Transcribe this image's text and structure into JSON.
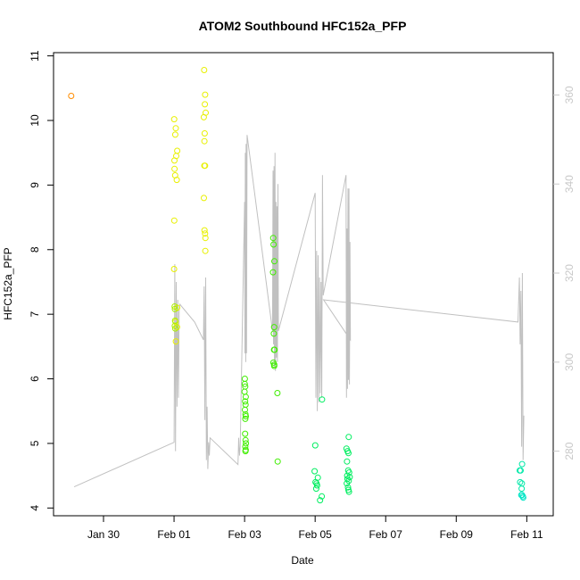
{
  "chart_data": {
    "type": "scatter",
    "title": "ATOM2 Southbound HFC152a_PFP",
    "xlabel": "Date",
    "ylabel": "HFC152a_PFP",
    "xlim": [
      "2017-01-28 14:00",
      "2017-02-11 18:00"
    ],
    "ylim": [
      3.88,
      11.05
    ],
    "y2lim": [
      265.5,
      369.5
    ],
    "x_ticks": [
      {
        "date": "2017-01-30",
        "label": "Jan 30"
      },
      {
        "date": "2017-02-01",
        "label": "Feb 01"
      },
      {
        "date": "2017-02-03",
        "label": "Feb 03"
      },
      {
        "date": "2017-02-05",
        "label": "Feb 05"
      },
      {
        "date": "2017-02-07",
        "label": "Feb 07"
      },
      {
        "date": "2017-02-09",
        "label": "Feb 09"
      },
      {
        "date": "2017-02-11",
        "label": "Feb 11"
      }
    ],
    "y_ticks": [
      {
        "value": 4,
        "label": "4"
      },
      {
        "value": 5,
        "label": "5"
      },
      {
        "value": 6,
        "label": "6"
      },
      {
        "value": 7,
        "label": "7"
      },
      {
        "value": 8,
        "label": "8"
      },
      {
        "value": 9,
        "label": "9"
      },
      {
        "value": 10,
        "label": "10"
      },
      {
        "value": 11,
        "label": "11"
      }
    ],
    "y2_ticks": [
      {
        "value": 280,
        "label": "280"
      },
      {
        "value": 300,
        "label": "300"
      },
      {
        "value": 320,
        "label": "320"
      },
      {
        "value": 340,
        "label": "340"
      },
      {
        "value": 360,
        "label": "360"
      }
    ],
    "grid": false,
    "colors": {
      "orange": "#ff8c00",
      "yellow": "#e8f000",
      "lime": "#aaee00",
      "green": "#40ee00",
      "spring": "#00ee60",
      "teal": "#00e8a8",
      "cyan": "#00e6c6",
      "line": "#c0c0c0",
      "right_axis": "#c8c8c8"
    },
    "series": [
      {
        "color_key": "orange",
        "points": [
          [
            "2017-01-29 02:00",
            10.38
          ]
        ]
      },
      {
        "color_key": "yellow",
        "points": [
          [
            "2017-02-01 00:05",
            10.02
          ],
          [
            "2017-02-01 01:10",
            9.88
          ],
          [
            "2017-02-01 00:50",
            9.78
          ],
          [
            "2017-02-01 02:10",
            9.53
          ],
          [
            "2017-02-01 01:30",
            9.45
          ],
          [
            "2017-02-01 00:15",
            9.38
          ],
          [
            "2017-02-01 00:20",
            9.25
          ],
          [
            "2017-02-01 00:45",
            9.15
          ],
          [
            "2017-02-01 01:50",
            9.08
          ],
          [
            "2017-02-01 00:10",
            8.45
          ],
          [
            "2017-02-01 00:00",
            7.7
          ],
          [
            "2017-02-01 02:10",
            7.1
          ],
          [
            "2017-02-01 01:00",
            6.88
          ],
          [
            "2017-02-01 02:00",
            6.8
          ],
          [
            "2017-02-01 01:15",
            6.58
          ],
          [
            "2017-02-01 20:30",
            10.78
          ],
          [
            "2017-02-01 21:10",
            10.4
          ],
          [
            "2017-02-01 21:00",
            10.25
          ],
          [
            "2017-02-01 21:30",
            10.12
          ],
          [
            "2017-02-01 20:15",
            10.05
          ],
          [
            "2017-02-01 20:50",
            9.8
          ],
          [
            "2017-02-01 20:40",
            9.68
          ],
          [
            "2017-02-01 20:35",
            9.3
          ],
          [
            "2017-02-01 21:05",
            9.3
          ],
          [
            "2017-02-01 20:20",
            8.8
          ],
          [
            "2017-02-01 20:45",
            8.3
          ],
          [
            "2017-02-01 21:05",
            8.25
          ],
          [
            "2017-02-01 21:20",
            8.18
          ],
          [
            "2017-02-01 21:15",
            7.98
          ]
        ]
      },
      {
        "color_key": "lime",
        "points": [
          [
            "2017-02-01 00:25",
            7.12
          ],
          [
            "2017-02-01 00:35",
            7.08
          ],
          [
            "2017-02-01 00:40",
            6.9
          ],
          [
            "2017-02-01 00:30",
            6.82
          ],
          [
            "2017-02-01 00:50",
            6.78
          ]
        ]
      },
      {
        "color_key": "green",
        "points": [
          [
            "2017-02-03 00:10",
            6.0
          ],
          [
            "2017-02-03 00:05",
            5.92
          ],
          [
            "2017-02-03 00:25",
            5.88
          ],
          [
            "2017-02-03 00:00",
            5.8
          ],
          [
            "2017-02-03 00:45",
            5.72
          ],
          [
            "2017-02-03 00:20",
            5.65
          ],
          [
            "2017-02-03 00:40",
            5.6
          ],
          [
            "2017-02-03 00:15",
            5.52
          ],
          [
            "2017-02-03 00:35",
            5.45
          ],
          [
            "2017-02-03 00:50",
            5.42
          ],
          [
            "2017-02-03 00:30",
            5.38
          ],
          [
            "2017-02-03 00:20",
            5.15
          ],
          [
            "2017-02-03 00:40",
            5.05
          ],
          [
            "2017-02-03 00:55",
            5.0
          ],
          [
            "2017-02-03 00:30",
            4.95
          ],
          [
            "2017-02-03 00:45",
            4.9
          ],
          [
            "2017-02-03 00:35",
            4.88
          ],
          [
            "2017-02-03 19:30",
            8.18
          ],
          [
            "2017-02-03 19:45",
            8.08
          ],
          [
            "2017-02-03 20:15",
            7.82
          ],
          [
            "2017-02-03 19:20",
            7.65
          ],
          [
            "2017-02-03 20:05",
            6.8
          ],
          [
            "2017-02-03 19:55",
            6.7
          ],
          [
            "2017-02-03 20:00",
            6.45
          ],
          [
            "2017-02-03 20:25",
            6.45
          ],
          [
            "2017-02-03 19:35",
            6.25
          ],
          [
            "2017-02-03 20:10",
            6.22
          ],
          [
            "2017-02-03 20:10",
            6.2
          ],
          [
            "2017-02-03 22:20",
            5.78
          ],
          [
            "2017-02-03 22:30",
            4.72
          ]
        ]
      },
      {
        "color_key": "spring",
        "points": [
          [
            "2017-02-05 00:05",
            4.97
          ],
          [
            "2017-02-05 04:40",
            5.68
          ],
          [
            "2017-02-04 23:40",
            4.57
          ],
          [
            "2017-02-05 01:50",
            4.47
          ],
          [
            "2017-02-05 00:15",
            4.4
          ],
          [
            "2017-02-05 01:00",
            4.38
          ],
          [
            "2017-02-05 01:20",
            4.35
          ],
          [
            "2017-02-05 00:45",
            4.3
          ],
          [
            "2017-02-05 04:30",
            4.18
          ],
          [
            "2017-02-05 03:20",
            4.12
          ],
          [
            "2017-02-05 22:50",
            5.1
          ],
          [
            "2017-02-05 21:20",
            4.92
          ],
          [
            "2017-02-05 22:05",
            4.88
          ],
          [
            "2017-02-05 22:40",
            4.85
          ],
          [
            "2017-02-05 21:40",
            4.72
          ],
          [
            "2017-02-05 22:30",
            4.58
          ],
          [
            "2017-02-05 23:10",
            4.55
          ],
          [
            "2017-02-05 21:50",
            4.5
          ],
          [
            "2017-02-05 23:30",
            4.48
          ],
          [
            "2017-02-05 22:00",
            4.45
          ],
          [
            "2017-02-05 22:50",
            4.42
          ],
          [
            "2017-02-05 21:30",
            4.38
          ],
          [
            "2017-02-05 22:20",
            4.32
          ],
          [
            "2017-02-05 22:40",
            4.28
          ],
          [
            "2017-02-05 23:00",
            4.25
          ]
        ]
      },
      {
        "color_key": "teal",
        "points": [
          [
            "2017-02-10 19:10",
            4.58
          ],
          [
            "2017-02-10 19:50",
            4.58
          ],
          [
            "2017-02-10 20:50",
            4.68
          ],
          [
            "2017-02-10 19:30",
            4.4
          ],
          [
            "2017-02-10 20:40",
            4.38
          ],
          [
            "2017-02-10 20:30",
            4.3
          ]
        ]
      },
      {
        "color_key": "cyan",
        "points": [
          [
            "2017-02-10 20:15",
            4.2
          ],
          [
            "2017-02-10 20:50",
            4.2
          ],
          [
            "2017-02-10 21:20",
            4.18
          ],
          [
            "2017-02-10 21:35",
            4.16
          ]
        ]
      }
    ],
    "line_series": {
      "color_key": "line",
      "axis": "right",
      "points": [
        [
          "2017-01-29 04:00",
          272
        ],
        [
          "2017-02-01 00:00",
          282
        ],
        [
          "2017-02-01 00:30",
          322
        ],
        [
          "2017-02-01 01:00",
          280
        ],
        [
          "2017-02-01 01:30",
          318
        ],
        [
          "2017-02-01 02:00",
          290
        ],
        [
          "2017-02-01 02:30",
          314
        ],
        [
          "2017-02-01 03:00",
          292
        ],
        [
          "2017-02-01 03:30",
          312
        ],
        [
          "2017-02-01 04:00",
          313
        ],
        [
          "2017-02-01 14:00",
          309
        ],
        [
          "2017-02-01 20:00",
          305
        ],
        [
          "2017-02-01 20:30",
          317
        ],
        [
          "2017-02-01 21:00",
          287
        ],
        [
          "2017-02-01 21:30",
          319
        ],
        [
          "2017-02-01 22:00",
          278
        ],
        [
          "2017-02-01 22:30",
          290
        ],
        [
          "2017-02-01 23:00",
          276
        ],
        [
          "2017-02-01 23:30",
          282
        ],
        [
          "2017-02-02 00:00",
          279
        ],
        [
          "2017-02-02 00:30",
          283
        ],
        [
          "2017-02-02 19:30",
          277
        ],
        [
          "2017-02-02 20:00",
          283
        ],
        [
          "2017-02-02 20:30",
          279
        ],
        [
          "2017-02-02 21:00",
          281
        ],
        [
          "2017-02-03 00:00",
          336
        ],
        [
          "2017-02-03 00:15",
          302
        ],
        [
          "2017-02-03 00:30",
          347
        ],
        [
          "2017-02-03 00:45",
          300
        ],
        [
          "2017-02-03 01:00",
          349
        ],
        [
          "2017-02-03 01:20",
          302
        ],
        [
          "2017-02-03 01:40",
          351
        ],
        [
          "2017-02-03 19:00",
          307
        ],
        [
          "2017-02-03 19:20",
          343
        ],
        [
          "2017-02-03 19:40",
          304
        ],
        [
          "2017-02-03 20:00",
          344
        ],
        [
          "2017-02-03 20:20",
          299
        ],
        [
          "2017-02-03 20:40",
          347
        ],
        [
          "2017-02-03 21:00",
          298
        ],
        [
          "2017-02-03 21:20",
          336
        ],
        [
          "2017-02-03 21:40",
          301
        ],
        [
          "2017-02-03 22:00",
          335
        ],
        [
          "2017-02-03 22:20",
          300
        ],
        [
          "2017-02-03 22:40",
          340
        ],
        [
          "2017-02-03 23:00",
          307
        ],
        [
          "2017-02-05 00:00",
          338
        ],
        [
          "2017-02-05 00:30",
          292
        ],
        [
          "2017-02-05 01:00",
          325
        ],
        [
          "2017-02-05 01:30",
          289
        ],
        [
          "2017-02-05 02:00",
          324
        ],
        [
          "2017-02-05 02:30",
          291
        ],
        [
          "2017-02-05 03:00",
          319
        ],
        [
          "2017-02-05 03:30",
          293
        ],
        [
          "2017-02-05 04:00",
          318
        ],
        [
          "2017-02-05 04:30",
          292
        ],
        [
          "2017-02-05 05:00",
          342
        ],
        [
          "2017-02-05 05:30",
          315
        ],
        [
          "2017-02-05 21:00",
          342
        ],
        [
          "2017-02-05 21:20",
          292
        ],
        [
          "2017-02-05 21:40",
          330
        ],
        [
          "2017-02-05 22:00",
          294
        ],
        [
          "2017-02-05 22:20",
          339
        ],
        [
          "2017-02-05 22:40",
          296
        ],
        [
          "2017-02-05 23:00",
          339
        ],
        [
          "2017-02-05 23:20",
          295
        ],
        [
          "2017-02-05 23:40",
          327
        ],
        [
          "2017-02-06 00:00",
          305
        ],
        [
          "2017-02-05 05:45",
          314
        ],
        [
          "2017-02-10 18:00",
          309
        ],
        [
          "2017-02-10 19:00",
          319
        ],
        [
          "2017-02-10 19:30",
          304
        ],
        [
          "2017-02-10 20:00",
          316
        ],
        [
          "2017-02-10 20:30",
          281
        ],
        [
          "2017-02-10 21:00",
          320
        ],
        [
          "2017-02-10 21:30",
          278
        ],
        [
          "2017-02-10 22:00",
          288
        ]
      ]
    }
  }
}
